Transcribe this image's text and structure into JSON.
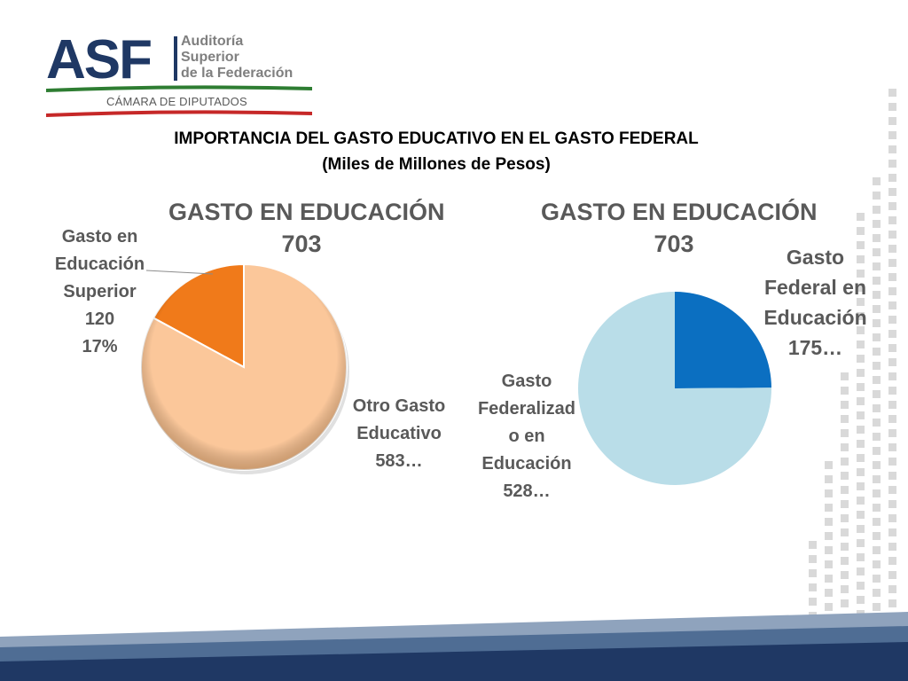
{
  "header": {
    "logo_text": "ASF",
    "logo_name_lines": [
      "Auditoría",
      "Superior",
      "de la Federación"
    ],
    "logo_subtext": "CÁMARA DE DIPUTADOS"
  },
  "slide": {
    "title": "IMPORTANCIA DEL GASTO EDUCATIVO EN EL GASTO FEDERAL",
    "subtitle": "(Miles de Millones de Pesos)"
  },
  "colors": {
    "brand_navy": "#1f3864",
    "logo_green": "#2e7d32",
    "logo_red": "#c62828",
    "label_gray": "#595959"
  },
  "chart_data": [
    {
      "type": "pie",
      "title_lines": [
        "GASTO EN EDUCACIÓN",
        "703"
      ],
      "slices": [
        {
          "label_lines": [
            "Gasto en",
            "Educación",
            "Superior",
            "120",
            "17%"
          ],
          "value": 120,
          "color": "#f07a1a"
        },
        {
          "label_lines": [
            "Otro Gasto",
            "Educativo",
            "583…"
          ],
          "value": 583,
          "color": "#fbc79a"
        }
      ]
    },
    {
      "type": "pie",
      "title_lines": [
        "GASTO EN EDUCACIÓN",
        "703"
      ],
      "slices": [
        {
          "label_lines": [
            "Gasto",
            "Federal en",
            "Educación",
            "175…"
          ],
          "value": 175,
          "color": "#0b6fc1"
        },
        {
          "label_lines": [
            "Gasto",
            "Federalizad",
            "o en",
            "Educación",
            "528…"
          ],
          "value": 528,
          "color": "#b9dde8"
        }
      ]
    }
  ]
}
